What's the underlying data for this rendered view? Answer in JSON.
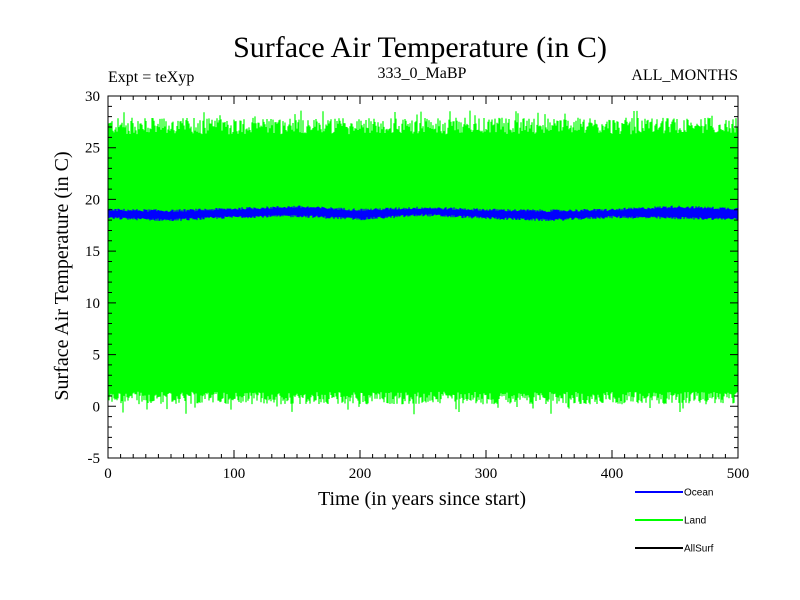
{
  "chart_data": {
    "type": "line",
    "title": "Surface Air Temperature (in C)",
    "subtitle_left": "Expt = teXyp",
    "subtitle_center": "333_0_MaBP",
    "subtitle_right": "ALL_MONTHS",
    "xlabel": "Time (in years since start)",
    "ylabel": "Surface Air Temperature (in C)",
    "xlim": [
      0,
      500
    ],
    "ylim": [
      -5,
      30
    ],
    "x_ticks": [
      0,
      100,
      200,
      300,
      400,
      500
    ],
    "y_ticks": [
      -5,
      0,
      5,
      10,
      15,
      20,
      25,
      30
    ],
    "x_minor_step": 10,
    "y_minor_step": 1,
    "grid": false,
    "legend_position": "bottom-right, outside plot",
    "series": [
      {
        "name": "Ocean",
        "color": "#0000ff",
        "style": "narrow band of monthly values",
        "band_low": [
          18.2,
          18.0,
          18.3,
          18.4,
          18.1,
          18.5,
          18.2,
          18.0,
          18.3,
          18.2,
          18.1
        ],
        "band_high": [
          19.0,
          18.9,
          19.1,
          19.3,
          19.0,
          19.2,
          19.0,
          18.9,
          19.0,
          19.3,
          19.1
        ],
        "band_x": [
          0,
          50,
          100,
          150,
          200,
          250,
          300,
          350,
          400,
          450,
          500
        ]
      },
      {
        "name": "Land",
        "color": "#00ff00",
        "style": "seasonal oscillation spanning approx 0 to 27.5",
        "typical_min": 0.5,
        "typical_max": 27.5,
        "extreme_min": -0.8,
        "extreme_max": 28.6
      },
      {
        "name": "AllSurf",
        "color": "#000000",
        "style": "not visible in plot area"
      }
    ]
  }
}
